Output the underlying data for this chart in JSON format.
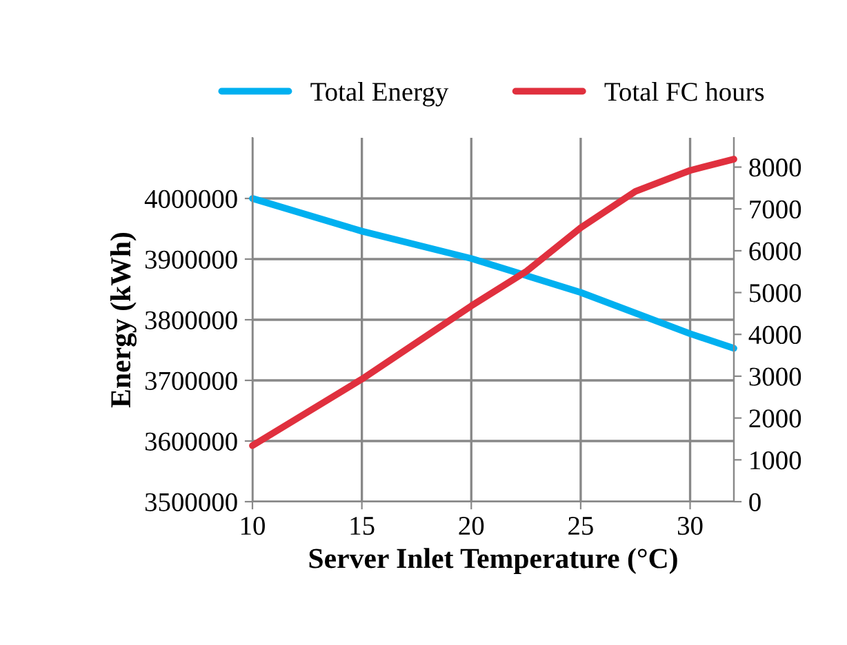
{
  "chart_data": {
    "type": "line",
    "xlabel": "Server Inlet Temperature (°C)",
    "ylabel": "Energy (kWh)",
    "x": [
      10,
      15,
      20,
      25,
      30,
      32
    ],
    "series": [
      {
        "name": "Total Energy",
        "color": "#00b0f0",
        "values": [
          4000000,
          3946000,
          3901000,
          3845000,
          3777000,
          3753000
        ]
      },
      {
        "name": "Total FC hours",
        "color": "#e0303e",
        "axis": "y2",
        "x": [
          10,
          15,
          20,
          22.5,
          25,
          27.5,
          30,
          32
        ],
        "values": [
          1340,
          2930,
          4680,
          5500,
          6550,
          7420,
          7920,
          8190
        ]
      }
    ],
    "xlim": [
      10,
      32
    ],
    "xticks": [
      10,
      15,
      20,
      25,
      30
    ],
    "ylim": [
      3500000,
      4100000
    ],
    "yticks": [
      3500000,
      3600000,
      3700000,
      3800000,
      3900000,
      4000000
    ],
    "y2lim": [
      0,
      8700
    ],
    "y2ticks": [
      0,
      1000,
      2000,
      3000,
      4000,
      5000,
      6000,
      7000,
      8000
    ],
    "grid": true,
    "legend": "top",
    "marker": "none",
    "line_style": "solid"
  }
}
